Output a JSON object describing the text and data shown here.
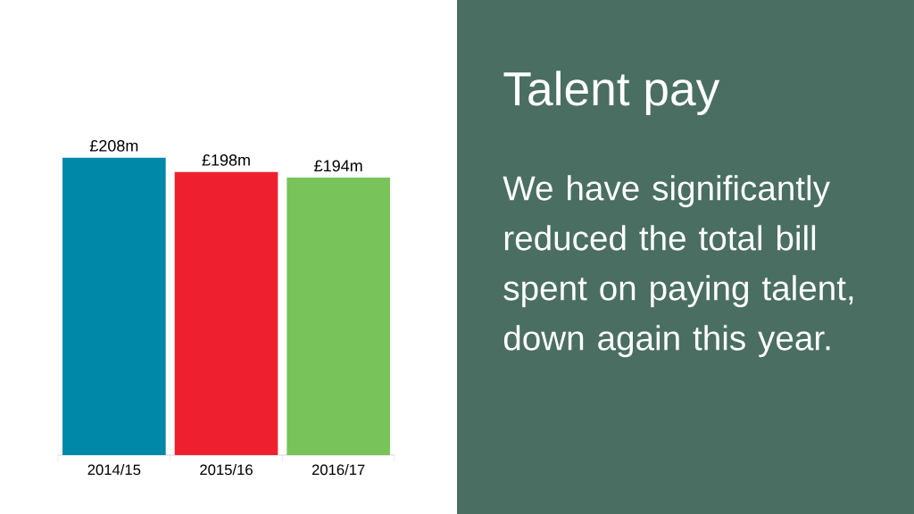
{
  "chart_data": {
    "type": "bar",
    "title": "Talent pay",
    "subtitle": "We have significantly reduced the total bill spent on paying talent, down again this year.",
    "categories": [
      "2014/15",
      "2015/16",
      "2016/17"
    ],
    "values": [
      208,
      198,
      194
    ],
    "value_labels": [
      "£208m",
      "£198m",
      "£194m"
    ],
    "colors": [
      "#0088a8",
      "#ee2030",
      "#78c35a"
    ]
  }
}
